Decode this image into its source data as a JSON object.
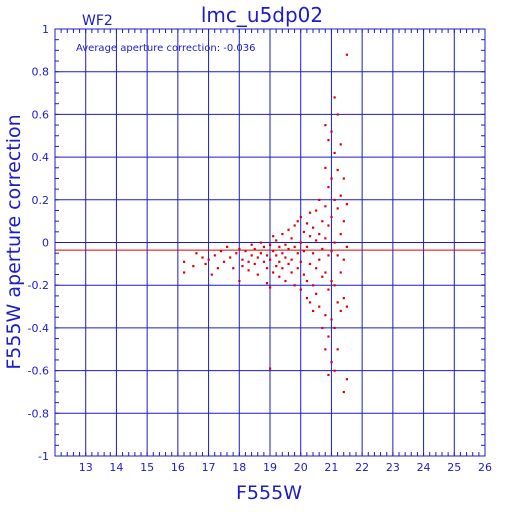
{
  "colors": {
    "axis": "#1c1cc8",
    "grid": "#1c1cc8",
    "points": "#e00000",
    "average_line": "#e00000",
    "background": "#ffffff"
  },
  "chart_data": {
    "type": "scatter",
    "title": "lmc_u5dp02",
    "chip_label": "WF2",
    "annotation": "Average aperture correction: -0.036",
    "xlabel": "F555W",
    "ylabel": "F555W aperture correction",
    "xlim": [
      12,
      26
    ],
    "ylim": [
      -1,
      1
    ],
    "xticks": [
      13,
      14,
      15,
      16,
      17,
      18,
      19,
      20,
      21,
      22,
      23,
      24,
      25,
      26
    ],
    "yticks": [
      -1,
      -0.8,
      -0.6,
      -0.4,
      -0.2,
      0,
      0.2,
      0.4,
      0.6,
      0.8,
      1
    ],
    "ytick_labels": [
      "-1",
      "-0.8",
      "-0.6",
      "-0.4",
      "-0.2",
      "0",
      "0.2",
      "0.4",
      "0.6",
      "0.8",
      "1"
    ],
    "grid": true,
    "reference_lines": [
      0,
      -0.036
    ],
    "points": [
      [
        16.2,
        -0.09
      ],
      [
        16.2,
        -0.14
      ],
      [
        16.5,
        -0.11
      ],
      [
        16.6,
        -0.05
      ],
      [
        16.8,
        -0.07
      ],
      [
        16.9,
        -0.1
      ],
      [
        17.0,
        -0.08
      ],
      [
        17.1,
        -0.15
      ],
      [
        17.2,
        -0.06
      ],
      [
        17.3,
        -0.12
      ],
      [
        17.4,
        -0.04
      ],
      [
        17.5,
        -0.09
      ],
      [
        17.6,
        -0.02
      ],
      [
        17.7,
        -0.07
      ],
      [
        17.8,
        -0.12
      ],
      [
        17.9,
        -0.05
      ],
      [
        18.0,
        -0.03
      ],
      [
        18.0,
        -0.18
      ],
      [
        18.1,
        -0.08
      ],
      [
        18.1,
        -0.11
      ],
      [
        18.2,
        -0.04
      ],
      [
        18.3,
        -0.09
      ],
      [
        18.3,
        -0.13
      ],
      [
        18.4,
        -0.01
      ],
      [
        18.4,
        -0.06
      ],
      [
        18.5,
        -0.1
      ],
      [
        18.5,
        -0.03
      ],
      [
        18.6,
        -0.07
      ],
      [
        18.6,
        -0.15
      ],
      [
        18.7,
        0.0
      ],
      [
        18.7,
        -0.05
      ],
      [
        18.8,
        -0.09
      ],
      [
        18.8,
        -0.02
      ],
      [
        18.9,
        -0.12
      ],
      [
        18.9,
        -0.06
      ],
      [
        18.9,
        -0.19
      ],
      [
        19.0,
        -0.01
      ],
      [
        19.0,
        -0.08
      ],
      [
        19.0,
        -0.21
      ],
      [
        19.1,
        0.03
      ],
      [
        19.1,
        -0.04
      ],
      [
        19.1,
        -0.14
      ],
      [
        19.2,
        -0.06
      ],
      [
        19.2,
        -0.11
      ],
      [
        19.2,
        0.01
      ],
      [
        19.3,
        -0.02
      ],
      [
        19.3,
        -0.09
      ],
      [
        19.3,
        -0.16
      ],
      [
        19.4,
        0.04
      ],
      [
        19.4,
        -0.05
      ],
      [
        19.4,
        -0.12
      ],
      [
        19.5,
        -0.01
      ],
      [
        19.5,
        -0.07
      ],
      [
        19.5,
        -0.18
      ],
      [
        19.6,
        0.06
      ],
      [
        19.6,
        -0.03
      ],
      [
        19.6,
        -0.1
      ],
      [
        19.7,
        0.02
      ],
      [
        19.7,
        -0.08
      ],
      [
        19.7,
        -0.14
      ],
      [
        19.8,
        0.08
      ],
      [
        19.8,
        -0.02
      ],
      [
        19.8,
        -0.2
      ],
      [
        19.9,
        0.1
      ],
      [
        19.9,
        -0.05
      ],
      [
        19.9,
        -0.12
      ],
      [
        20.0,
        0.12
      ],
      [
        20.0,
        0.0
      ],
      [
        20.0,
        -0.09
      ],
      [
        20.0,
        -0.22
      ],
      [
        20.1,
        0.05
      ],
      [
        20.1,
        -0.04
      ],
      [
        20.1,
        -0.15
      ],
      [
        20.2,
        0.09
      ],
      [
        20.2,
        -0.02
      ],
      [
        20.2,
        -0.18
      ],
      [
        20.2,
        -0.26
      ],
      [
        20.3,
        0.14
      ],
      [
        20.3,
        0.03
      ],
      [
        20.3,
        -0.1
      ],
      [
        20.3,
        -0.28
      ],
      [
        20.4,
        0.07
      ],
      [
        20.4,
        -0.05
      ],
      [
        20.4,
        -0.2
      ],
      [
        20.4,
        -0.32
      ],
      [
        20.5,
        0.15
      ],
      [
        20.5,
        0.01
      ],
      [
        20.5,
        -0.12
      ],
      [
        20.5,
        -0.24
      ],
      [
        20.6,
        0.2
      ],
      [
        20.6,
        0.04
      ],
      [
        20.6,
        -0.08
      ],
      [
        20.6,
        -0.3
      ],
      [
        20.7,
        0.1
      ],
      [
        20.7,
        -0.03
      ],
      [
        20.7,
        -0.16
      ],
      [
        20.7,
        -0.4
      ],
      [
        20.8,
        0.55
      ],
      [
        20.8,
        0.35
      ],
      [
        20.8,
        0.17
      ],
      [
        20.8,
        0.02
      ],
      [
        20.8,
        -0.14
      ],
      [
        20.8,
        -0.34
      ],
      [
        20.8,
        -0.5
      ],
      [
        20.9,
        0.48
      ],
      [
        20.9,
        0.26
      ],
      [
        20.9,
        0.08
      ],
      [
        20.9,
        -0.06
      ],
      [
        20.9,
        -0.22
      ],
      [
        20.9,
        -0.44
      ],
      [
        20.9,
        -0.62
      ],
      [
        21.0,
        0.52
      ],
      [
        21.0,
        0.3
      ],
      [
        21.0,
        0.12
      ],
      [
        21.0,
        -0.04
      ],
      [
        21.0,
        -0.18
      ],
      [
        21.0,
        -0.36
      ],
      [
        21.0,
        -0.56
      ],
      [
        21.1,
        0.68
      ],
      [
        21.1,
        0.42
      ],
      [
        21.1,
        0.2
      ],
      [
        21.1,
        0.0
      ],
      [
        21.1,
        -0.2
      ],
      [
        21.1,
        -0.4
      ],
      [
        21.1,
        -0.6
      ],
      [
        21.2,
        0.6
      ],
      [
        21.2,
        0.34
      ],
      [
        21.2,
        0.16
      ],
      [
        21.2,
        -0.06
      ],
      [
        21.2,
        -0.28
      ],
      [
        21.2,
        -0.5
      ],
      [
        21.3,
        0.46
      ],
      [
        21.3,
        0.22
      ],
      [
        21.3,
        0.04
      ],
      [
        21.3,
        -0.14
      ],
      [
        21.3,
        -0.32
      ],
      [
        21.4,
        0.3
      ],
      [
        21.4,
        0.1
      ],
      [
        21.4,
        -0.08
      ],
      [
        21.4,
        -0.26
      ],
      [
        21.4,
        -0.7
      ],
      [
        21.5,
        0.88
      ],
      [
        21.5,
        0.18
      ],
      [
        21.5,
        -0.02
      ],
      [
        21.5,
        -0.3
      ],
      [
        21.5,
        -0.64
      ],
      [
        19.0,
        -0.59
      ]
    ]
  }
}
